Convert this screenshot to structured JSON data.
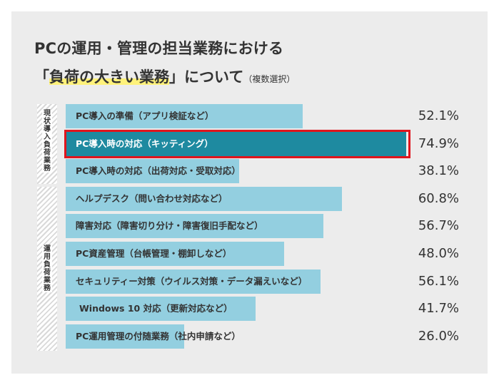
{
  "title": {
    "line1": "PCの運用・管理の担当業務における",
    "bracket_open": "「",
    "highlight": "負荷の大きい業務",
    "bracket_close": "」",
    "rest": "について",
    "note": "（複数選択）"
  },
  "groups": [
    {
      "label": "現状導入負荷業務"
    },
    {
      "label": "運用負荷業務"
    }
  ],
  "colors": {
    "bar": "#93cfe0",
    "highlight_bar": "#1e8aa0",
    "highlight_border": "#e0151d",
    "background": "#ececec"
  },
  "chart_data": {
    "type": "bar",
    "orientation": "horizontal",
    "categories": [
      "PC導入の準備（アプリ検証など）",
      "PC導入時の対応（キッティング）",
      "PC導入時の対応（出荷対応・受取対応）",
      "ヘルプデスク（問い合わせ対応など）",
      "障害対応（障害切り分け・障害復旧手配など）",
      "PC資産管理（台帳管理・棚卸しなど）",
      "セキュリティー対策（ウイルス対策・データ漏えいなど）",
      "Windows 10 対応（更新対応など）",
      "PC運用管理の付随業務（社内申請など）"
    ],
    "values": [
      52.1,
      74.9,
      38.1,
      60.8,
      56.7,
      48.0,
      56.1,
      41.7,
      26.0
    ],
    "value_labels": [
      "52.1%",
      "74.9%",
      "38.1%",
      "60.8%",
      "56.7%",
      "48.0%",
      "56.1%",
      "41.7%",
      "26.0%"
    ],
    "highlighted_index": 1,
    "xlim": [
      0,
      74.9
    ],
    "grid": false,
    "legend": "none"
  }
}
